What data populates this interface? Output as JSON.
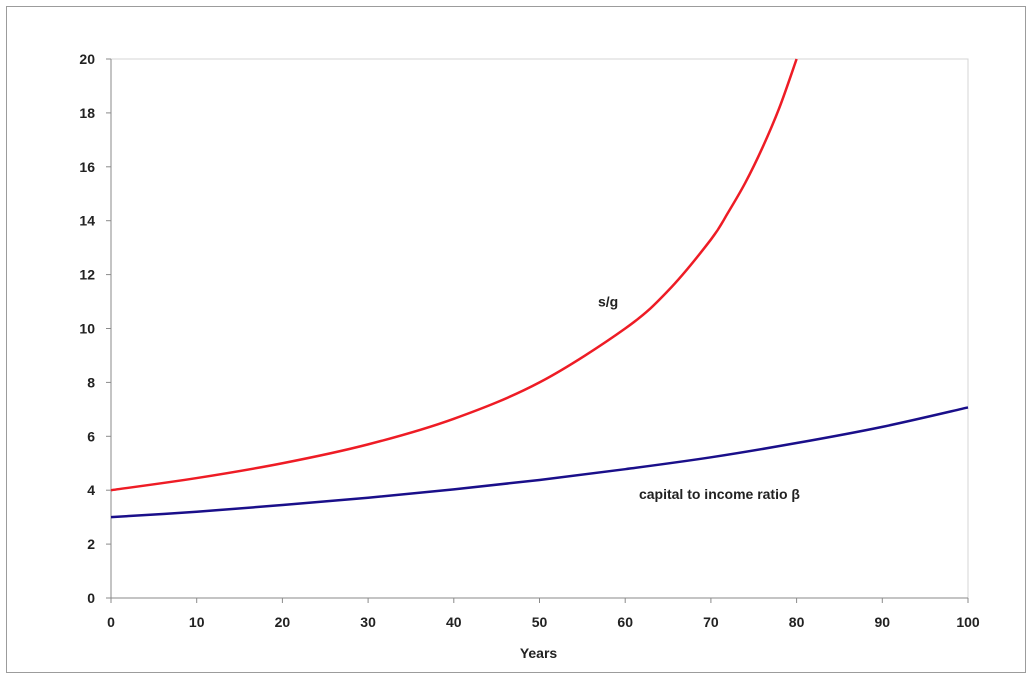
{
  "chart_data": {
    "type": "line",
    "title": "",
    "xlabel": "Years",
    "ylabel": "",
    "xlim": [
      0,
      100
    ],
    "ylim": [
      0,
      20
    ],
    "xticks": [
      0,
      10,
      20,
      30,
      40,
      50,
      60,
      70,
      80,
      90,
      100
    ],
    "yticks": [
      0,
      2,
      4,
      6,
      8,
      10,
      12,
      14,
      16,
      18,
      20
    ],
    "grid": false,
    "legend": "none",
    "series": [
      {
        "name": "s/g",
        "color": "#ee1c25",
        "x": [
          0,
          10,
          20,
          30,
          40,
          50,
          60,
          65,
          70,
          72,
          74,
          76,
          78,
          80
        ],
        "y": [
          4.0,
          4.45,
          5.0,
          5.7,
          6.65,
          8.0,
          10.0,
          11.4,
          13.3,
          14.3,
          15.4,
          16.7,
          18.2,
          20.0
        ]
      },
      {
        "name": "capital to income ratio β",
        "color": "#1a0f8a",
        "x": [
          0,
          10,
          20,
          30,
          40,
          50,
          60,
          70,
          80,
          90,
          100
        ],
        "y": [
          3.0,
          3.2,
          3.45,
          3.72,
          4.03,
          4.38,
          4.78,
          5.22,
          5.75,
          6.35,
          7.07
        ]
      }
    ],
    "annotations": [
      {
        "text": "s/g",
        "x": 58,
        "y": 11
      },
      {
        "text": "capital to income ratio β",
        "x": 71,
        "y": 3.85
      }
    ]
  }
}
